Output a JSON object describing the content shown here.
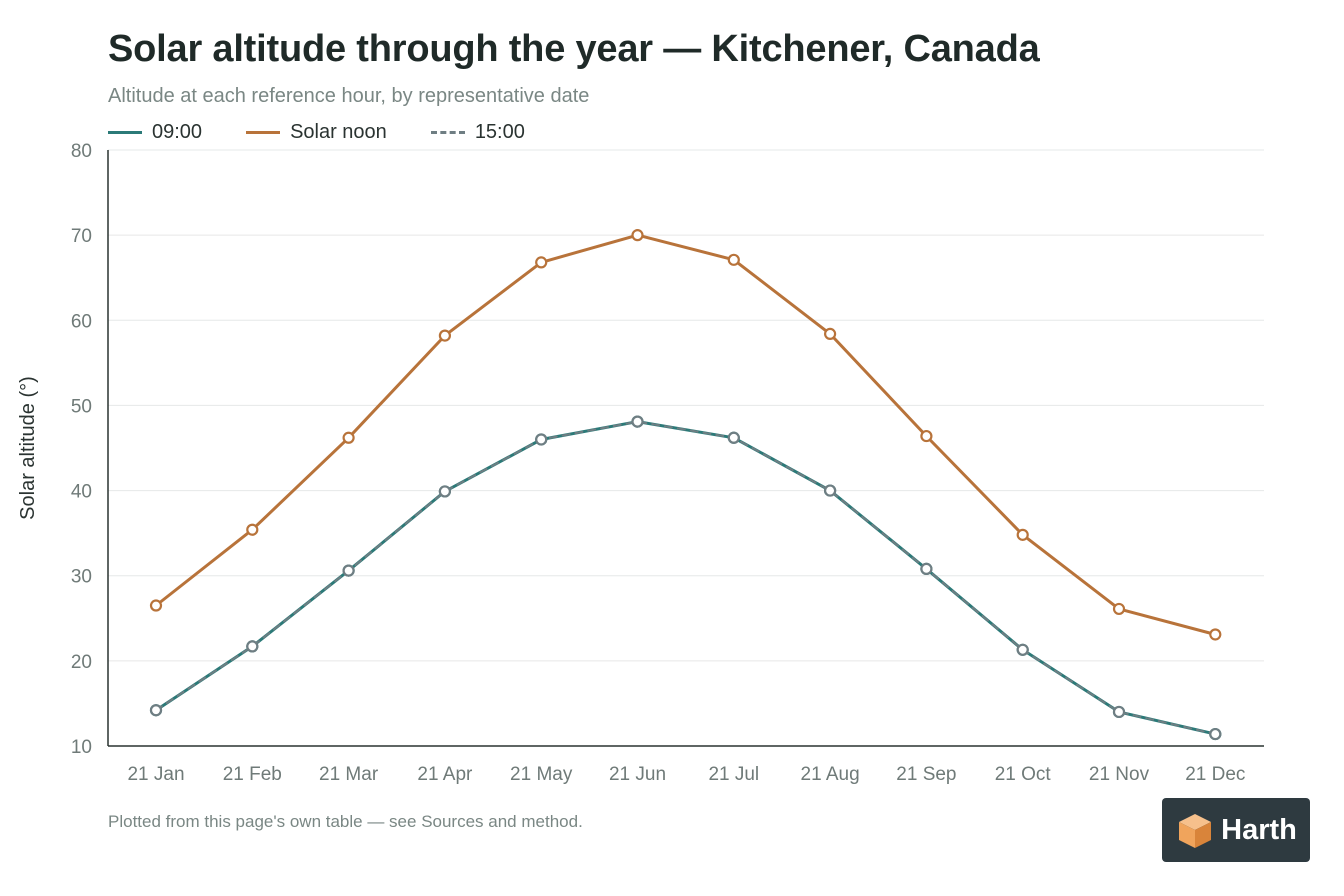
{
  "title": "Solar altitude through the year — Kitchener, Canada",
  "subtitle": "Altitude at each reference hour, by representative date",
  "footnote": "Plotted from this page's own table — see Sources and method.",
  "logo": {
    "text": "Harth",
    "icon": "harth-cube-logo"
  },
  "colors": {
    "series_0900": "#2b7a78",
    "series_noon": "#b8733a",
    "series_1500": "#6f7e83",
    "grid": "#e6e8e8",
    "axis": "#2a3331",
    "tick_text": "#6f7a78",
    "logo_bg": "#2e3a40",
    "logo_accent": "#f0a45c"
  },
  "chart_data": {
    "type": "line",
    "title": "Solar altitude through the year — Kitchener, Canada",
    "subtitle": "Altitude at each reference hour, by representative date",
    "xlabel": "",
    "ylabel": "Solar altitude (°)",
    "ylim": [
      10,
      80
    ],
    "yticks": [
      "10",
      "20",
      "30",
      "40",
      "50",
      "60",
      "70",
      "80"
    ],
    "grid": true,
    "legend_position": "top-left",
    "categories": [
      "21 Jan",
      "21 Feb",
      "21 Mar",
      "21 Apr",
      "21 May",
      "21 Jun",
      "21 Jul",
      "21 Aug",
      "21 Sep",
      "21 Oct",
      "21 Nov",
      "21 Dec"
    ],
    "series": [
      {
        "name": "09:00",
        "style": "solid",
        "color": "#2b7a78",
        "values": [
          14.2,
          21.7,
          30.6,
          39.9,
          46.0,
          48.1,
          46.2,
          40.0,
          30.8,
          21.3,
          14.0,
          11.4
        ]
      },
      {
        "name": "Solar noon",
        "style": "solid",
        "color": "#b8733a",
        "values": [
          26.5,
          35.4,
          46.2,
          58.2,
          66.8,
          70.0,
          67.1,
          58.4,
          46.4,
          34.8,
          26.1,
          23.1
        ]
      },
      {
        "name": "15:00",
        "style": "dashed",
        "color": "#6f7e83",
        "values": [
          14.2,
          21.7,
          30.6,
          39.9,
          46.0,
          48.1,
          46.2,
          40.0,
          30.8,
          21.3,
          14.0,
          11.4
        ]
      }
    ]
  }
}
